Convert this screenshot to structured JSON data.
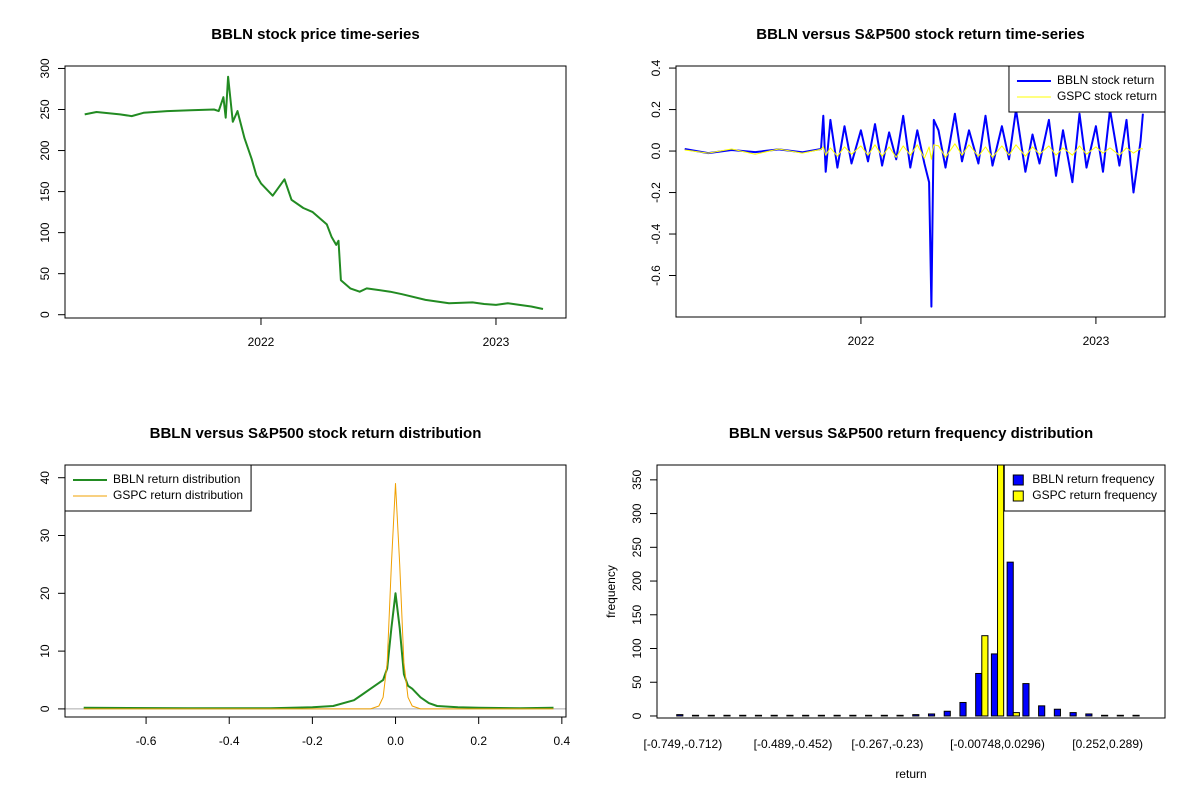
{
  "chart_data": [
    {
      "type": "line",
      "title": "BBLN stock price time-series",
      "color": "#228b22",
      "x": [
        2021.25,
        2021.3,
        2021.4,
        2021.45,
        2021.5,
        2021.6,
        2021.7,
        2021.8,
        2021.82,
        2021.84,
        2021.85,
        2021.86,
        2021.88,
        2021.9,
        2021.93,
        2021.96,
        2021.98,
        2022.0,
        2022.05,
        2022.1,
        2022.13,
        2022.18,
        2022.22,
        2022.28,
        2022.3,
        2022.32,
        2022.33,
        2022.34,
        2022.38,
        2022.42,
        2022.45,
        2022.55,
        2022.6,
        2022.7,
        2022.8,
        2022.9,
        2022.95,
        2023.0,
        2023.05,
        2023.1,
        2023.15,
        2023.2
      ],
      "values": [
        244,
        247,
        244,
        242,
        246,
        248,
        249,
        250,
        248,
        265,
        240,
        290,
        235,
        248,
        215,
        190,
        170,
        160,
        145,
        165,
        140,
        130,
        125,
        110,
        95,
        85,
        90,
        42,
        32,
        28,
        32,
        28,
        25,
        18,
        14,
        15,
        13,
        12,
        14,
        12,
        10,
        7
      ],
      "xlim": [
        2021.166,
        2023.298
      ],
      "xticks": [
        2022,
        2023
      ],
      "ylim": [
        -4,
        303
      ],
      "yticks": [
        0,
        50,
        100,
        150,
        200,
        250,
        300
      ]
    },
    {
      "type": "line",
      "title": "BBLN versus S&P500 stock return time-series",
      "legend": "topright",
      "x": [
        2021.25,
        2021.35,
        2021.45,
        2021.55,
        2021.65,
        2021.75,
        2021.83,
        2021.84,
        2021.85,
        2021.87,
        2021.9,
        2021.93,
        2021.96,
        2022.0,
        2022.03,
        2022.06,
        2022.09,
        2022.12,
        2022.15,
        2022.18,
        2022.21,
        2022.24,
        2022.27,
        2022.29,
        2022.3,
        2022.31,
        2022.33,
        2022.36,
        2022.4,
        2022.43,
        2022.46,
        2022.5,
        2022.53,
        2022.56,
        2022.6,
        2022.63,
        2022.66,
        2022.7,
        2022.73,
        2022.76,
        2022.8,
        2022.83,
        2022.86,
        2022.9,
        2022.93,
        2022.96,
        2023.0,
        2023.03,
        2023.06,
        2023.1,
        2023.13,
        2023.16,
        2023.19,
        2023.2
      ],
      "series": [
        {
          "name": "BBLN stock return",
          "color": "#0000ff",
          "width": 2,
          "values": [
            0.01,
            -0.01,
            0.005,
            -0.005,
            0.008,
            -0.006,
            0.01,
            0.17,
            -0.1,
            0.15,
            -0.08,
            0.12,
            -0.06,
            0.1,
            -0.05,
            0.13,
            -0.07,
            0.09,
            -0.04,
            0.17,
            -0.08,
            0.1,
            -0.06,
            -0.15,
            -0.75,
            0.15,
            0.1,
            -0.08,
            0.18,
            -0.05,
            0.1,
            -0.06,
            0.17,
            -0.07,
            0.12,
            -0.04,
            0.2,
            -0.1,
            0.08,
            -0.06,
            0.15,
            -0.12,
            0.1,
            -0.15,
            0.18,
            -0.08,
            0.12,
            -0.1,
            0.2,
            -0.07,
            0.15,
            -0.2,
            0.05,
            0.18
          ]
        },
        {
          "name": "GSPC stock return",
          "color": "#ffff00",
          "width": 1,
          "values": [
            0.005,
            -0.01,
            0.01,
            -0.015,
            0.01,
            -0.01,
            0.008,
            0.02,
            -0.02,
            0.015,
            -0.025,
            0.02,
            -0.015,
            0.025,
            -0.02,
            0.03,
            -0.025,
            0.02,
            -0.03,
            0.025,
            -0.02,
            0.03,
            -0.035,
            0.02,
            -0.04,
            0.03,
            0.025,
            -0.03,
            0.035,
            -0.02,
            0.03,
            -0.025,
            0.02,
            -0.03,
            0.025,
            -0.02,
            0.03,
            -0.025,
            0.02,
            -0.015,
            0.025,
            -0.02,
            0.015,
            -0.02,
            0.025,
            -0.015,
            0.02,
            -0.01,
            0.015,
            -0.02,
            0.015,
            -0.01,
            0.012,
            0.01
          ]
        }
      ],
      "xlim": [
        2021.213,
        2023.294
      ],
      "xticks": [
        2022,
        2023
      ],
      "ylim": [
        -0.8,
        0.41
      ],
      "yticks": [
        -0.6,
        -0.4,
        -0.2,
        {
          "value": 0,
          "label": "0.0"
        },
        0.2,
        0.4
      ]
    },
    {
      "type": "line",
      "title": "BBLN versus S&P500 stock return distribution",
      "legend": "topleft",
      "x": [
        -0.75,
        -0.5,
        -0.3,
        -0.2,
        -0.15,
        -0.1,
        -0.08,
        -0.06,
        -0.04,
        -0.03,
        -0.02,
        -0.01,
        0,
        0.01,
        0.02,
        0.03,
        0.04,
        0.06,
        0.08,
        0.1,
        0.15,
        0.2,
        0.3,
        0.38
      ],
      "series": [
        {
          "name": "BBLN return distribution",
          "color": "#228b22",
          "width": 2,
          "values": [
            0.2,
            0.1,
            0.1,
            0.3,
            0.5,
            1.5,
            2.5,
            3.5,
            4.5,
            5,
            7,
            14,
            20,
            14,
            6,
            4,
            3.5,
            2,
            1,
            0.5,
            0.3,
            0.2,
            0.1,
            0.2
          ]
        },
        {
          "name": "GSPC return distribution",
          "color": "#f0a000",
          "width": 1,
          "values": [
            0,
            0,
            0,
            0,
            0,
            0,
            0,
            0,
            0.5,
            2,
            8,
            25,
            39,
            25,
            8,
            2,
            0.5,
            0,
            0,
            0,
            0,
            0,
            0,
            0
          ]
        }
      ],
      "xlim": [
        -0.795,
        0.41
      ],
      "xticks": [
        -0.6,
        -0.4,
        -0.2,
        {
          "value": 0,
          "label": "0.0"
        },
        0.2,
        0.4
      ],
      "ylim": [
        -1.4,
        42.2
      ],
      "yticks": [
        0,
        10,
        20,
        30,
        40
      ]
    },
    {
      "type": "bar",
      "title": "BBLN versus S&P500 return frequency distribution",
      "legend": "topright",
      "x_label": "return",
      "y_label": "frequency",
      "categories": [
        "[-0.749,-0.712)",
        null,
        null,
        null,
        null,
        null,
        null,
        "[-0.489,-0.452)",
        null,
        null,
        null,
        null,
        null,
        "[-0.267,-0.23)",
        null,
        null,
        null,
        null,
        null,
        null,
        "[-0.00748,0.0296)",
        null,
        null,
        null,
        null,
        null,
        null,
        "[0.252,0.289)",
        null,
        null
      ],
      "series": [
        {
          "name": "BBLN return frequency",
          "color": "#0000ff",
          "values": [
            2,
            1,
            1,
            1,
            1,
            1,
            1,
            1,
            1,
            1,
            1,
            1,
            1,
            1,
            1,
            2,
            3,
            7,
            20,
            63,
            92,
            228,
            48,
            15,
            10,
            5,
            3,
            1,
            1,
            1
          ]
        },
        {
          "name": "GSPC return frequency",
          "color": "#ffff00",
          "values": [
            0,
            0,
            0,
            0,
            0,
            0,
            0,
            0,
            0,
            0,
            0,
            0,
            0,
            0,
            0,
            0,
            0,
            0,
            0,
            119,
            385,
            5,
            0,
            0,
            0,
            0,
            0,
            0,
            0,
            0
          ]
        }
      ],
      "ylim": [
        -3,
        372
      ],
      "yticks": [
        0,
        50,
        100,
        150,
        200,
        250,
        300,
        350
      ]
    }
  ]
}
